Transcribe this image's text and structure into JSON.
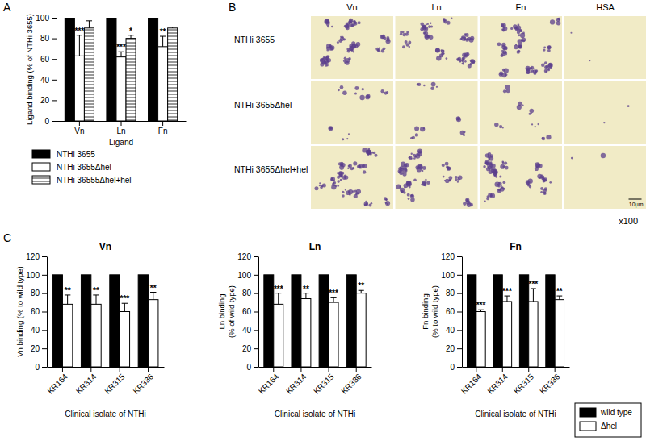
{
  "chart_data": [
    {
      "type": "bar",
      "annotations": [
        "A"
      ],
      "categories": [
        "Vn",
        "Ln",
        "Fn"
      ],
      "x_label": "Ligand",
      "y_label": "Ligand binding (% of NTHi 3655)",
      "ylim": [
        0,
        100
      ],
      "yticks": [
        0,
        20,
        40,
        60,
        80,
        100
      ],
      "legend": "bottom",
      "series": [
        {
          "name": "NTHi 3655",
          "color": "#000000",
          "values": [
            100,
            100,
            100
          ]
        },
        {
          "name": "NTHi 3655Δhel",
          "color": "#ffffff",
          "values": [
            63,
            62,
            72
          ],
          "errors": [
            20,
            5,
            10
          ],
          "significance": [
            "***",
            "***",
            "**"
          ]
        },
        {
          "name": "NTHi 36555Δhel+hel",
          "color": "#ffffff",
          "values": [
            90,
            80,
            90
          ],
          "errors": [
            7,
            3,
            1
          ],
          "significance": [
            null,
            "*",
            null
          ]
        }
      ]
    },
    {
      "type": "bar",
      "annotations": [
        "C"
      ],
      "title": "Vn",
      "categories": [
        "KR164",
        "KR314",
        "KR315",
        "KR336"
      ],
      "x_label": "Clinical isolate of NTHi",
      "y_label": [
        "Vn binding (% to wild type)"
      ],
      "ylim": [
        0,
        120
      ],
      "yticks": [
        0,
        20,
        40,
        60,
        80,
        100,
        120
      ],
      "series": [
        {
          "name": "wild type",
          "color": "#000000",
          "values": [
            100,
            100,
            100,
            100
          ]
        },
        {
          "name": "Δhel",
          "color": "#ffffff",
          "values": [
            68,
            68,
            60,
            73
          ],
          "errors": [
            10,
            10,
            9,
            8
          ],
          "significance": [
            "**",
            "**",
            "***",
            "**"
          ]
        }
      ]
    },
    {
      "type": "bar",
      "title": "Ln",
      "categories": [
        "KR164",
        "KR314",
        "KR315",
        "KR336"
      ],
      "x_label": "Clinical isolate of NTHi",
      "y_label": [
        "Ln binding",
        "(% of wild type)"
      ],
      "ylim": [
        0,
        120
      ],
      "yticks": [
        0,
        20,
        40,
        60,
        80,
        100,
        120
      ],
      "series": [
        {
          "name": "wild type",
          "color": "#000000",
          "values": [
            100,
            100,
            100,
            100
          ]
        },
        {
          "name": "Δhel",
          "color": "#ffffff",
          "values": [
            68,
            74,
            70,
            80
          ],
          "errors": [
            12,
            6,
            5,
            3
          ],
          "significance": [
            "***",
            "**",
            "***",
            "**"
          ]
        }
      ]
    },
    {
      "type": "bar",
      "title": "Fn",
      "categories": [
        "KR164",
        "KR314",
        "KR315",
        "KR336"
      ],
      "x_label": "Clinical isolate of NTHi",
      "y_label": [
        "Fn binding",
        "(% to wild type)"
      ],
      "ylim": [
        0,
        120
      ],
      "yticks": [
        0,
        20,
        40,
        60,
        80,
        100,
        120
      ],
      "legend": "lower right",
      "series": [
        {
          "name": "wild type",
          "color": "#000000",
          "values": [
            100,
            100,
            100,
            100
          ]
        },
        {
          "name": "Δhel",
          "color": "#ffffff",
          "values": [
            60,
            71,
            71,
            73
          ],
          "errors": [
            2,
            6,
            14,
            4
          ],
          "significance": [
            "***",
            "***",
            "***",
            "**"
          ]
        }
      ]
    }
  ],
  "image_panel": {
    "annotations": [
      "B"
    ],
    "columns": [
      "Vn",
      "Ln",
      "Fn",
      "HSA"
    ],
    "rows": [
      "NTHi 3655",
      "NTHi 3655Δhel",
      "NTHi 3655Δhel+hel"
    ],
    "scale_bar": "10μm",
    "magnification": "x100"
  }
}
